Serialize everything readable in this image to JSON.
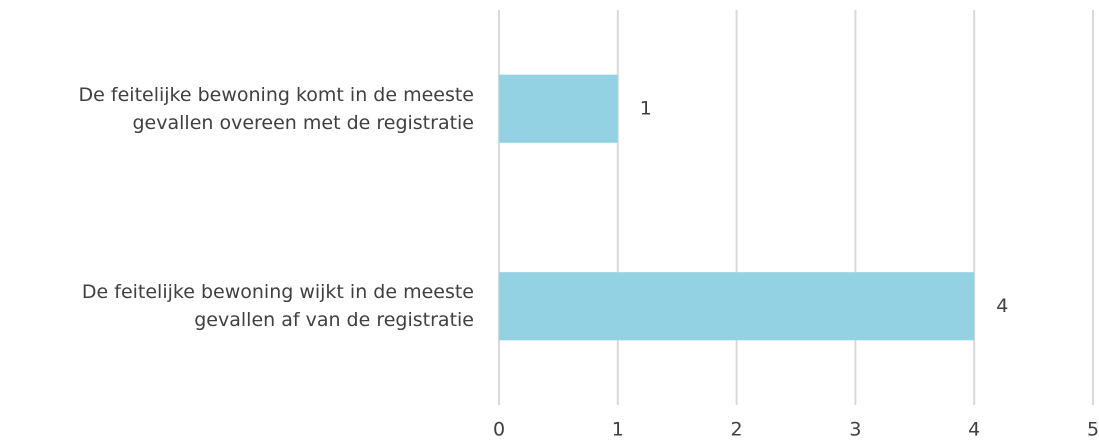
{
  "chart_data": {
    "type": "bar",
    "orientation": "horizontal",
    "categories": [
      "De feitelijke bewoning komt in de meeste gevallen overeen met de registratie",
      "De feitelijke bewoning wijkt in de meeste gevallen af van de registratie"
    ],
    "values": [
      1,
      4
    ],
    "color": "#92d2e3",
    "xlim": [
      0,
      5
    ],
    "xticks": [
      0,
      1,
      2,
      3,
      4,
      5
    ],
    "grid": true
  }
}
